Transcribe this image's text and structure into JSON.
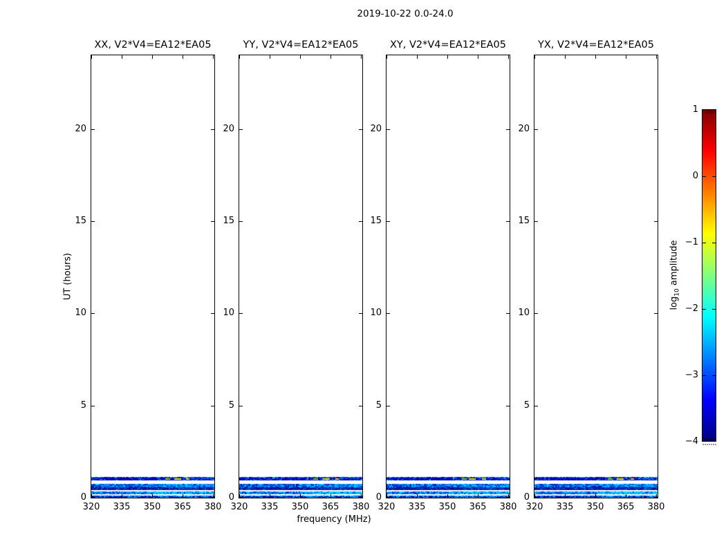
{
  "figure": {
    "suptitle": "2019-10-22 0.0-24.0",
    "background": "#ffffff",
    "line_color": "#000000"
  },
  "chart_data": {
    "type": "heatmap",
    "suptitle": "2019-10-22 0.0-24.0",
    "xlabel": "frequency (MHz)",
    "ylabel": "UT (hours)",
    "xlim": [
      320,
      381.5
    ],
    "ylim": [
      0,
      24
    ],
    "xticks": [
      320,
      335,
      350,
      365,
      380
    ],
    "xtick_labels": [
      "320",
      "335",
      "350",
      "365",
      "380"
    ],
    "yticks": [
      0,
      5,
      10,
      15,
      20
    ],
    "ytick_labels": [
      "0",
      "5",
      "10",
      "15",
      "20"
    ],
    "panels": [
      {
        "id": "xx",
        "title": "XX, V2*V4=EA12*EA05"
      },
      {
        "id": "yy",
        "title": "YY, V2*V4=EA12*EA05"
      },
      {
        "id": "xy",
        "title": "XY, V2*V4=EA12*EA05"
      },
      {
        "id": "yx",
        "title": "YX, V2*V4=EA12*EA05"
      }
    ],
    "bands": [
      {
        "name": "scan-ut-1.0",
        "ut": [
          0.92,
          1.12
        ],
        "palette": [
          "#0000a0",
          "#0016d0",
          "#0030e0",
          "#00a8ff"
        ],
        "weights": [
          62,
          20,
          10,
          8
        ],
        "boost_from": 0.6,
        "boost_p": 0.22,
        "top_palette": [
          "#0000b0",
          "#0040ff",
          "#00a0ff",
          "#00e0ff"
        ],
        "top_weights": [
          35,
          25,
          22,
          18
        ],
        "green_fleck_prob": 0.05,
        "green_fleck_color": "#2fbf5f",
        "streaks": [
          {
            "f": 0.62,
            "w": 7,
            "color": "#7fd400"
          },
          {
            "f": 0.71,
            "w": 10,
            "color": "#f0f000"
          },
          {
            "f": 0.79,
            "w": 5,
            "color": "#ffc800"
          }
        ]
      },
      {
        "name": "scan-ut-0.65",
        "ut": [
          0.56,
          0.75
        ],
        "palette": [
          "#000d99",
          "#0022cc",
          "#0055ee",
          "#0099ff",
          "#00d5ff"
        ],
        "weights": [
          14,
          28,
          22,
          18,
          18
        ],
        "boost_from": 0.55,
        "boost_p": 0.45
      },
      {
        "name": "scan-ut-0.48",
        "ut": [
          0.41,
          0.56
        ],
        "palette": [
          "#000d88",
          "#0022bb",
          "#0033cc",
          "#0077dd"
        ],
        "weights": [
          46,
          26,
          18,
          10
        ],
        "boost_from": 0.62,
        "boost_p": 0.22
      },
      {
        "name": "scan-ut-0.25",
        "ut": [
          0.17,
          0.335
        ],
        "palette": [
          "#0011aa",
          "#0033dd",
          "#0077ff",
          "#00bbff",
          "#00e5ff"
        ],
        "weights": [
          16,
          24,
          20,
          20,
          20
        ],
        "boost_from": 0.5,
        "boost_p": 0.5
      },
      {
        "name": "scan-ut-0.07",
        "ut": [
          0.0,
          0.13
        ],
        "palette": [
          "#000d77",
          "#0011bb",
          "#0044dd",
          "#0099ff",
          "#00ccff"
        ],
        "weights": [
          18,
          30,
          24,
          18,
          10
        ],
        "boost_from": 0.55,
        "boost_p": 0.3
      }
    ],
    "colorbar": {
      "label_prefix": "log",
      "label_sub": "10",
      "label_suffix": " amplitude",
      "label_plain": "log10 amplitude",
      "tick_labels": [
        "1",
        "0",
        "−1",
        "−2",
        "−3",
        "−4"
      ],
      "tick_values": [
        1,
        0,
        -1,
        -2,
        -3,
        -4
      ],
      "range": [
        -4,
        1
      ],
      "colormap": "jet",
      "gradient": [
        {
          "pos": 0.0,
          "color": "#00007f"
        },
        {
          "pos": 0.125,
          "color": "#0000ff"
        },
        {
          "pos": 0.375,
          "color": "#00ffff"
        },
        {
          "pos": 0.625,
          "color": "#ffff00"
        },
        {
          "pos": 0.875,
          "color": "#ff0000"
        },
        {
          "pos": 1.0,
          "color": "#7f0000"
        }
      ]
    }
  }
}
